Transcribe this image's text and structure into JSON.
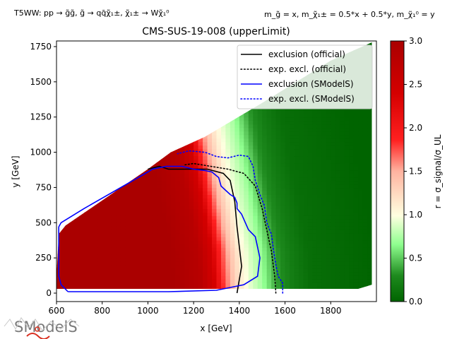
{
  "header": {
    "process": "T5WW: pp → g̃g̃, g̃ → qq̄χ̃₁±, χ̃₁± → Wχ̃₁⁰",
    "masses": "m_g̃ = x, m_χ̃₁± = 0.5*x + 0.5*y, m_χ̃₁⁰ = y"
  },
  "logo": {
    "text": "SModelS"
  },
  "colors": {
    "official": "#000000",
    "smodels": "#0000ff",
    "cmap_low": "#006400",
    "cmap_mid_green": "#90ff90",
    "cmap_one": "#ffffe0",
    "cmap_high": "#aa0000"
  },
  "chart_data": {
    "type": "heatmap",
    "title": "CMS-SUS-19-008 (upperLimit)",
    "xlabel": "x [GeV]",
    "ylabel": "y [GeV]",
    "xlim": [
      600,
      2000
    ],
    "ylim": [
      -60,
      1790
    ],
    "xticks": [
      600,
      800,
      1000,
      1200,
      1400,
      1600,
      1800
    ],
    "yticks": [
      0,
      250,
      500,
      750,
      1000,
      1250,
      1500,
      1750
    ],
    "colorbar": {
      "label": "r = σ_signal/σ_UL",
      "range": [
        0.0,
        3.0
      ],
      "ticks": [
        "0.0",
        "0.5",
        "1.0",
        "1.5",
        "2.0",
        "2.5",
        "3.0"
      ]
    },
    "legend": {
      "position": "top-right",
      "entries": [
        {
          "label": "exclusion (official)",
          "style": "solid",
          "color": "#000000"
        },
        {
          "label": "exp. excl. (official)",
          "style": "dotted",
          "color": "#000000"
        },
        {
          "label": "exclusion (SModelS)",
          "style": "solid",
          "color": "#0000ff"
        },
        {
          "label": "exp. excl. (SModelS)",
          "style": "dotted",
          "color": "#0000ff"
        }
      ]
    },
    "region": {
      "polygon": [
        [
          600,
          120
        ],
        [
          610,
          420
        ],
        [
          640,
          480
        ],
        [
          1000,
          880
        ],
        [
          1100,
          1000
        ],
        [
          1250,
          1110
        ],
        [
          1500,
          1350
        ],
        [
          1800,
          1650
        ],
        [
          1980,
          1780
        ],
        [
          1980,
          60
        ],
        [
          1920,
          30
        ],
        [
          600,
          30
        ]
      ]
    },
    "r_profile": [
      [
        600,
        3.0
      ],
      [
        1100,
        3.0
      ],
      [
        1220,
        2.8
      ],
      [
        1280,
        2.4
      ],
      [
        1320,
        1.8
      ],
      [
        1360,
        1.4
      ],
      [
        1400,
        1.1
      ],
      [
        1440,
        0.9
      ],
      [
        1480,
        0.75
      ],
      [
        1520,
        0.55
      ],
      [
        1560,
        0.35
      ],
      [
        1620,
        0.2
      ],
      [
        1700,
        0.08
      ],
      [
        2000,
        0.0
      ]
    ],
    "series": [
      {
        "name": "exclusion (official)",
        "points": [
          [
            1390,
            0
          ],
          [
            1410,
            190
          ],
          [
            1390,
            470
          ],
          [
            1380,
            650
          ],
          [
            1360,
            800
          ],
          [
            1330,
            850
          ],
          [
            1260,
            880
          ],
          [
            1090,
            880
          ],
          [
            1050,
            900
          ],
          [
            1000,
            880
          ]
        ]
      },
      {
        "name": "exp. excl. (official)",
        "points": [
          [
            1560,
            0
          ],
          [
            1555,
            120
          ],
          [
            1540,
            300
          ],
          [
            1520,
            450
          ],
          [
            1500,
            600
          ],
          [
            1470,
            760
          ],
          [
            1420,
            850
          ],
          [
            1350,
            880
          ],
          [
            1200,
            920
          ],
          [
            1160,
            910
          ]
        ]
      },
      {
        "name": "exclusion (SModelS)",
        "points": [
          [
            650,
            10
          ],
          [
            1090,
            10
          ],
          [
            1300,
            20
          ],
          [
            1420,
            60
          ],
          [
            1480,
            120
          ],
          [
            1490,
            250
          ],
          [
            1470,
            400
          ],
          [
            1440,
            450
          ],
          [
            1410,
            560
          ],
          [
            1390,
            600
          ],
          [
            1390,
            640
          ],
          [
            1380,
            680
          ],
          [
            1360,
            700
          ],
          [
            1340,
            730
          ],
          [
            1320,
            760
          ],
          [
            1310,
            820
          ],
          [
            1280,
            860
          ],
          [
            1250,
            870
          ],
          [
            1200,
            880
          ],
          [
            1150,
            900
          ],
          [
            1080,
            900
          ],
          [
            1020,
            880
          ],
          [
            1000,
            860
          ],
          [
            720,
            600
          ],
          [
            620,
            500
          ],
          [
            610,
            470
          ],
          [
            610,
            120
          ],
          [
            620,
            60
          ],
          [
            650,
            10
          ]
        ]
      },
      {
        "name": "exp. excl. (SModelS)",
        "points": [
          [
            1590,
            0
          ],
          [
            1590,
            70
          ],
          [
            1570,
            120
          ],
          [
            1560,
            200
          ],
          [
            1550,
            300
          ],
          [
            1540,
            420
          ],
          [
            1520,
            500
          ],
          [
            1510,
            620
          ],
          [
            1490,
            700
          ],
          [
            1470,
            800
          ],
          [
            1460,
            900
          ],
          [
            1440,
            970
          ],
          [
            1400,
            980
          ],
          [
            1350,
            960
          ],
          [
            1300,
            970
          ],
          [
            1250,
            1000
          ],
          [
            1180,
            1010
          ],
          [
            1130,
            990
          ]
        ]
      }
    ]
  }
}
